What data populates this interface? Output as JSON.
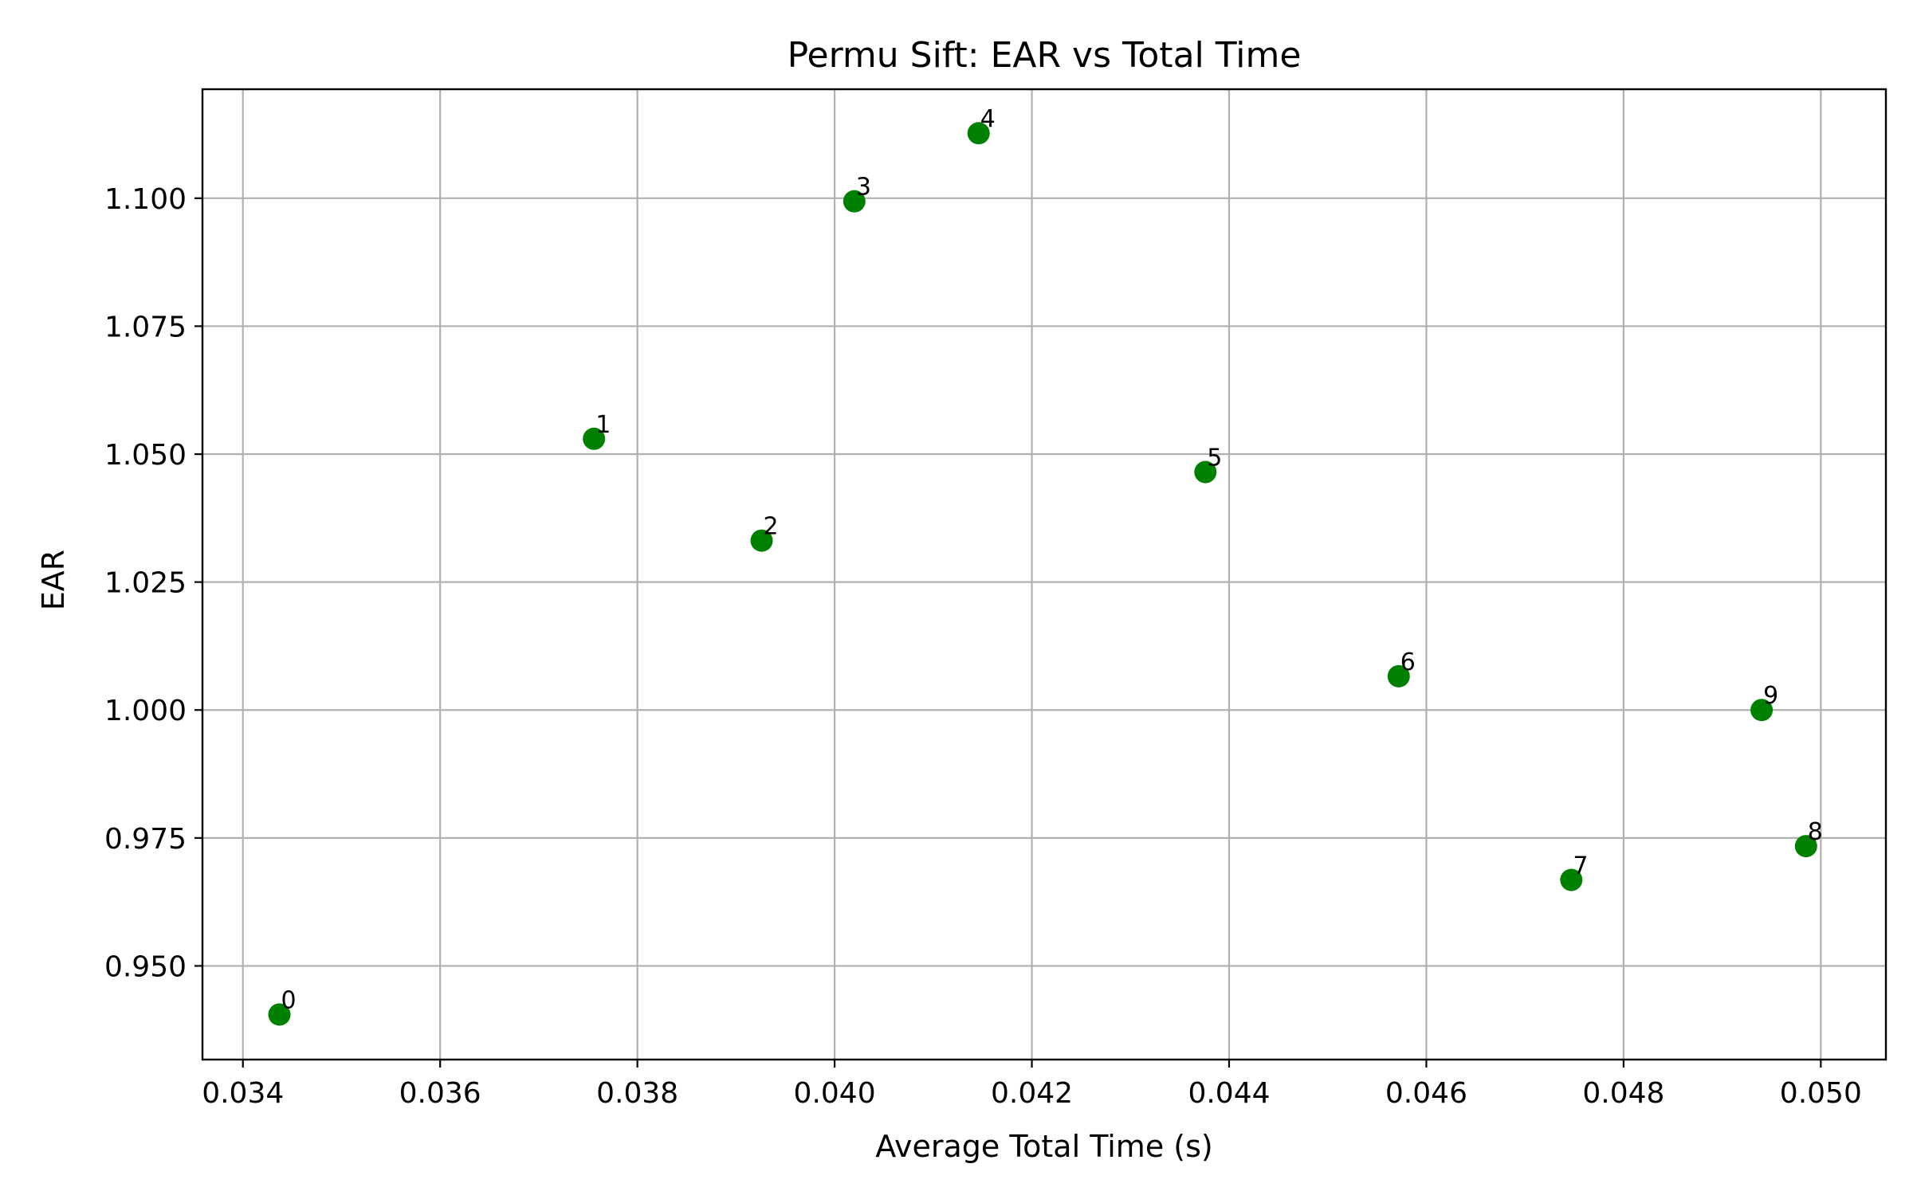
{
  "chart_data": {
    "type": "scatter",
    "title": "Permu Sift: EAR vs Total Time",
    "xlabel": "Average Total Time (s)",
    "ylabel": "EAR",
    "xlim": [
      0.03359,
      0.05066
    ],
    "ylim": [
      0.9317,
      1.1213
    ],
    "x_ticks": [
      0.034,
      0.036,
      0.038,
      0.04,
      0.042,
      0.044,
      0.046,
      0.048,
      0.05
    ],
    "x_tick_labels": [
      "0.034",
      "0.036",
      "0.038",
      "0.040",
      "0.042",
      "0.044",
      "0.046",
      "0.048",
      "0.050"
    ],
    "y_ticks": [
      0.95,
      0.975,
      1.0,
      1.025,
      1.05,
      1.075,
      1.1
    ],
    "y_tick_labels": [
      "0.950",
      "0.975",
      "1.000",
      "1.025",
      "1.050",
      "1.075",
      "1.100"
    ],
    "grid": true,
    "marker_color": "#008000",
    "points": [
      {
        "label": "0",
        "x": 0.03437,
        "y": 0.9405
      },
      {
        "label": "1",
        "x": 0.03756,
        "y": 1.053
      },
      {
        "label": "2",
        "x": 0.03926,
        "y": 1.0331
      },
      {
        "label": "3",
        "x": 0.0402,
        "y": 1.0994
      },
      {
        "label": "4",
        "x": 0.04146,
        "y": 1.1127
      },
      {
        "label": "5",
        "x": 0.04376,
        "y": 1.0465
      },
      {
        "label": "6",
        "x": 0.04572,
        "y": 1.0066
      },
      {
        "label": "7",
        "x": 0.04747,
        "y": 0.9668
      },
      {
        "label": "8",
        "x": 0.04985,
        "y": 0.9734
      },
      {
        "label": "9",
        "x": 0.0494,
        "y": 1.0
      }
    ]
  }
}
